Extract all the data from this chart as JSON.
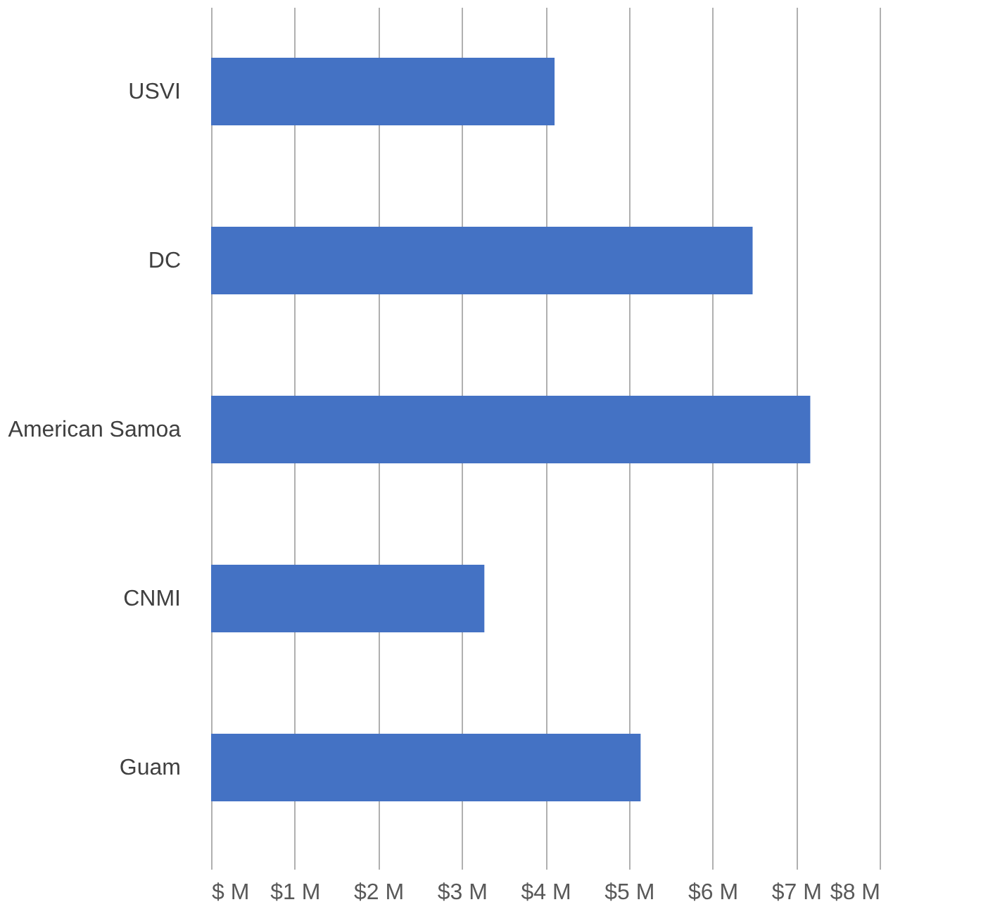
{
  "chart_data": {
    "type": "bar",
    "orientation": "horizontal",
    "categories": [
      "USVI",
      "DC",
      "American Samoa",
      "CNMI",
      "Guam"
    ],
    "values": [
      4.11,
      6.48,
      7.17,
      3.27,
      5.14
    ],
    "color": "#4472c4",
    "xlim": [
      0,
      8
    ],
    "xticks": [
      {
        "value": 0,
        "label": "$ M"
      },
      {
        "value": 1,
        "label": "$1 M"
      },
      {
        "value": 2,
        "label": "$2 M"
      },
      {
        "value": 3,
        "label": "$3 M"
      },
      {
        "value": 4,
        "label": "$4 M"
      },
      {
        "value": 5,
        "label": "$5 M"
      },
      {
        "value": 6,
        "label": "$6 M"
      },
      {
        "value": 7,
        "label": "$7 M"
      },
      {
        "value": 8,
        "label": "$8 M"
      }
    ],
    "grid": "x"
  }
}
